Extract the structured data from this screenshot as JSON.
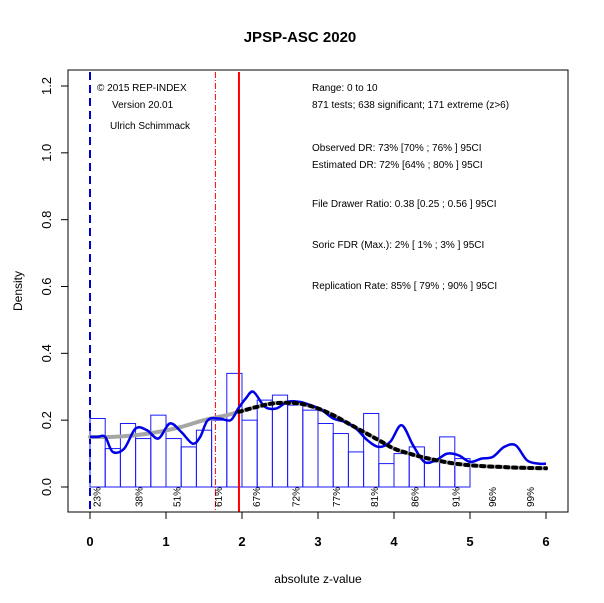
{
  "chart_data": {
    "type": "histogram-density",
    "title": "JPSP-ASC 2020",
    "xlabel": "absolute z-value",
    "ylabel": "Density",
    "xlim": [
      0,
      6
    ],
    "ylim": [
      0,
      1.2
    ],
    "xticks": [
      "0",
      "1",
      "2",
      "3",
      "4",
      "5",
      "6"
    ],
    "yticks": [
      "0.0",
      "0.2",
      "0.4",
      "0.6",
      "0.8",
      "1.0",
      "1.2"
    ],
    "bin_width": 0.2,
    "histogram": [
      0.205,
      0.115,
      0.19,
      0.145,
      0.215,
      0.145,
      0.12,
      0.17,
      0.2,
      0.34,
      0.2,
      0.26,
      0.275,
      0.245,
      0.23,
      0.19,
      0.16,
      0.105,
      0.22,
      0.07,
      0.1,
      0.12,
      0.075,
      0.15,
      0.085
    ],
    "kernel_density": [
      [
        0.0,
        0.15
      ],
      [
        0.1,
        0.15
      ],
      [
        0.2,
        0.15
      ],
      [
        0.3,
        0.105
      ],
      [
        0.45,
        0.115
      ],
      [
        0.6,
        0.175
      ],
      [
        0.75,
        0.17
      ],
      [
        0.9,
        0.145
      ],
      [
        1.05,
        0.19
      ],
      [
        1.2,
        0.165
      ],
      [
        1.35,
        0.13
      ],
      [
        1.45,
        0.15
      ],
      [
        1.55,
        0.2
      ],
      [
        1.7,
        0.205
      ],
      [
        1.85,
        0.2
      ],
      [
        1.95,
        0.235
      ],
      [
        2.05,
        0.265
      ],
      [
        2.15,
        0.285
      ],
      [
        2.3,
        0.24
      ],
      [
        2.45,
        0.235
      ],
      [
        2.6,
        0.255
      ],
      [
        2.75,
        0.255
      ],
      [
        2.9,
        0.245
      ],
      [
        3.05,
        0.23
      ],
      [
        3.2,
        0.205
      ],
      [
        3.35,
        0.195
      ],
      [
        3.5,
        0.175
      ],
      [
        3.65,
        0.14
      ],
      [
        3.8,
        0.12
      ],
      [
        3.95,
        0.135
      ],
      [
        4.1,
        0.185
      ],
      [
        4.25,
        0.125
      ],
      [
        4.4,
        0.075
      ],
      [
        4.55,
        0.08
      ],
      [
        4.7,
        0.1
      ],
      [
        4.85,
        0.095
      ],
      [
        5.0,
        0.075
      ],
      [
        5.15,
        0.085
      ],
      [
        5.3,
        0.09
      ],
      [
        5.45,
        0.12
      ],
      [
        5.6,
        0.125
      ],
      [
        5.75,
        0.08
      ],
      [
        5.9,
        0.07
      ],
      [
        6.0,
        0.07
      ]
    ],
    "fitted_full": [
      [
        0.0,
        0.15
      ],
      [
        0.3,
        0.15
      ],
      [
        0.6,
        0.155
      ],
      [
        0.9,
        0.165
      ],
      [
        1.2,
        0.18
      ],
      [
        1.5,
        0.2
      ],
      [
        1.8,
        0.215
      ],
      [
        1.96,
        0.225
      ]
    ],
    "fitted_significant": [
      [
        1.96,
        0.225
      ],
      [
        2.2,
        0.24
      ],
      [
        2.4,
        0.25
      ],
      [
        2.6,
        0.252
      ],
      [
        2.8,
        0.248
      ],
      [
        3.0,
        0.235
      ],
      [
        3.2,
        0.215
      ],
      [
        3.4,
        0.19
      ],
      [
        3.6,
        0.165
      ],
      [
        3.8,
        0.14
      ],
      [
        4.0,
        0.115
      ],
      [
        4.2,
        0.1
      ],
      [
        4.4,
        0.088
      ],
      [
        4.6,
        0.078
      ],
      [
        4.8,
        0.07
      ],
      [
        5.0,
        0.065
      ],
      [
        5.2,
        0.062
      ],
      [
        5.4,
        0.06
      ],
      [
        5.6,
        0.058
      ],
      [
        5.8,
        0.057
      ],
      [
        6.0,
        0.056
      ]
    ],
    "power_labels": [
      {
        "x": 0.1,
        "label": "23%"
      },
      {
        "x": 0.65,
        "label": "38%"
      },
      {
        "x": 1.15,
        "label": "51%"
      },
      {
        "x": 1.7,
        "label": "61%"
      },
      {
        "x": 2.2,
        "label": "67%"
      },
      {
        "x": 2.72,
        "label": "72%"
      },
      {
        "x": 3.25,
        "label": "77%"
      },
      {
        "x": 3.75,
        "label": "81%"
      },
      {
        "x": 4.28,
        "label": "86%"
      },
      {
        "x": 4.82,
        "label": "91%"
      },
      {
        "x": 5.3,
        "label": "96%"
      },
      {
        "x": 5.8,
        "label": "99%"
      }
    ],
    "vlines": {
      "red_solid": 1.96,
      "red_dashdot": 1.65,
      "blue_dashed": 0.0
    },
    "colors": {
      "histogram": "#1a1aff",
      "kernel": "#0000e6",
      "fit": "#a6a6a6",
      "fit_dots": "#000000",
      "threshold": "#ff0000",
      "zero_line": "#0000cc"
    }
  },
  "info_left": [
    "© 2015 REP-INDEX",
    "Version 20.01",
    "Ulrich Schimmack"
  ],
  "info_right": [
    "Range: 0 to 10",
    "871 tests; 638 significant; 171 extreme (z>6)",
    "Observed DR: 73% [70% ; 76% ] 95CI",
    "Estimated DR: 72% [64% ; 80% ] 95CI",
    "File Drawer Ratio: 0.38 [0.25 ; 0.56 ] 95CI",
    "Soric FDR (Max.): 2% [ 1% ; 3% ] 95CI",
    "Replication Rate: 85% [ 79% ; 90% ] 95CI"
  ]
}
